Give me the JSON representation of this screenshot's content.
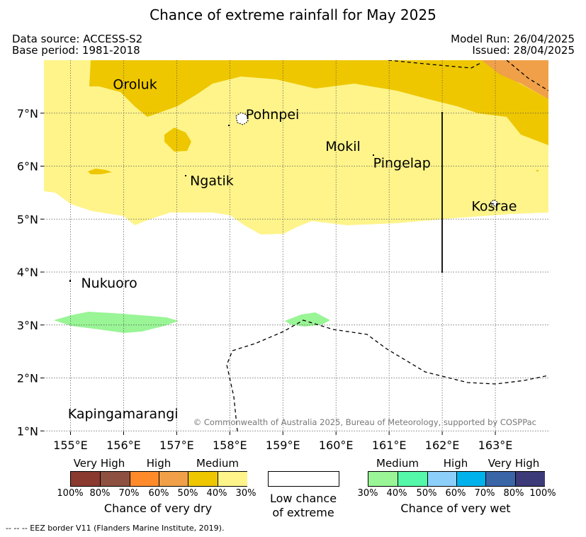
{
  "title": "Chance of extreme rainfall for May 2025",
  "meta": {
    "data_source": "Data source: ACCESS-S2",
    "base_period": "Base period: 1981-2018",
    "model_run": "Model Run: 26/04/2025",
    "issued": "Issued: 28/04/2025"
  },
  "map": {
    "lon_range": [
      154.5,
      164.0
    ],
    "lat_range": [
      0.99,
      8.0
    ],
    "lon_ticks": [
      155,
      156,
      157,
      158,
      159,
      160,
      161,
      162,
      163
    ],
    "lat_ticks": [
      1,
      2,
      3,
      4,
      5,
      6,
      7
    ],
    "lon_labels": [
      "155°E",
      "156°E",
      "157°E",
      "158°E",
      "159°E",
      "160°E",
      "161°E",
      "162°E",
      "163°E"
    ],
    "lat_labels": [
      "1°N",
      "2°N",
      "3°N",
      "4°N",
      "5°N",
      "6°N",
      "7°N"
    ],
    "places": [
      {
        "name": "Oroluk",
        "lon": 155.8,
        "lat": 7.55
      },
      {
        "name": "Pohnpei",
        "lon": 158.3,
        "lat": 6.98
      },
      {
        "name": "Mokil",
        "lon": 159.8,
        "lat": 6.38
      },
      {
        "name": "Pingelap",
        "lon": 160.7,
        "lat": 6.07
      },
      {
        "name": "Ngatik",
        "lon": 157.25,
        "lat": 5.73
      },
      {
        "name": "Kosrae",
        "lon": 162.55,
        "lat": 5.25
      },
      {
        "name": "Nukuoro",
        "lon": 155.2,
        "lat": 3.8
      },
      {
        "name": "Kapingamarangi",
        "lon": 154.95,
        "lat": 1.33
      }
    ],
    "copyright": "© Commonwealth of Australia 2025, Bureau of Meteorology, supported by COSPPac"
  },
  "legend": {
    "dry": {
      "categories": [
        "Very High",
        "High",
        "Medium"
      ],
      "ticks": [
        "100%",
        "80%",
        "70%",
        "60%",
        "50%",
        "40%",
        "30%"
      ],
      "colors": [
        "#8b3a30",
        "#8e5040",
        "#ff8a2a",
        "#f0a048",
        "#eec700",
        "#fef48a"
      ],
      "caption": "Chance of very dry"
    },
    "low": {
      "caption_line1": "Low chance",
      "caption_line2": "of extreme"
    },
    "wet": {
      "categories": [
        "Medium",
        "High",
        "Very High"
      ],
      "ticks": [
        "30%",
        "40%",
        "50%",
        "60%",
        "70%",
        "80%",
        "100%"
      ],
      "colors": [
        "#99f595",
        "#54f8a8",
        "#8ccffa",
        "#00b2ec",
        "#3a66a8",
        "#3c3a78"
      ],
      "caption": "Chance of very wet"
    }
  },
  "footnote": "--  --  -- EEZ border V11 (Flanders Marine Institute, 2019)."
}
